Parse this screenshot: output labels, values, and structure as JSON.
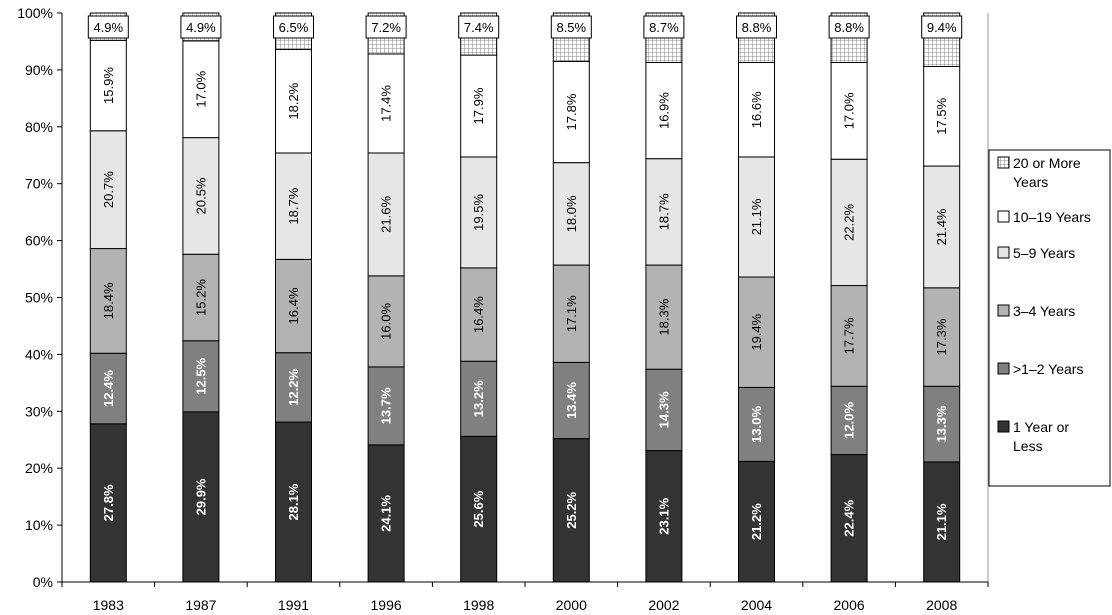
{
  "chart_data": {
    "type": "bar",
    "stacked": true,
    "categories": [
      "1983",
      "1987",
      "1991",
      "1996",
      "1998",
      "2000",
      "2002",
      "2004",
      "2006",
      "2008"
    ],
    "ylim": [
      0,
      100
    ],
    "yticks": [
      "0%",
      "10%",
      "20%",
      "30%",
      "40%",
      "50%",
      "60%",
      "70%",
      "80%",
      "90%",
      "100%"
    ],
    "title": "",
    "xlabel": "",
    "ylabel": "",
    "grid": false,
    "legend_placement": "right",
    "series": [
      {
        "name": "1 Year or Less",
        "color": "#333333",
        "values": [
          27.8,
          29.9,
          28.1,
          24.1,
          25.6,
          25.2,
          23.1,
          21.2,
          22.4,
          21.1
        ],
        "labels": [
          "27.8%",
          "29.9%",
          "28.1%",
          "24.1%",
          "25.6%",
          "25.2%",
          "23.1%",
          "21.2%",
          "22.4%",
          "21.1%"
        ]
      },
      {
        "name": ">1–2 Years",
        "color": "#808080",
        "values": [
          12.4,
          12.5,
          12.2,
          13.7,
          13.2,
          13.4,
          14.3,
          13.0,
          12.0,
          13.3
        ],
        "labels": [
          "12.4%",
          "12.5%",
          "12.2%",
          "13.7%",
          "13.2%",
          "13.4%",
          "14.3%",
          "13.0%",
          "12.0%",
          "13.3%"
        ]
      },
      {
        "name": "3–4 Years",
        "color": "#b3b3b3",
        "values": [
          18.4,
          15.2,
          16.4,
          16.0,
          16.4,
          17.1,
          18.3,
          19.4,
          17.7,
          17.3
        ],
        "labels": [
          "18.4%",
          "15.2%",
          "16.4%",
          "16.0%",
          "16.4%",
          "17.1%",
          "18.3%",
          "19.4%",
          "17.7%",
          "17.3%"
        ]
      },
      {
        "name": "5–9 Years",
        "color": "#e6e6e6",
        "values": [
          20.7,
          20.5,
          18.7,
          21.6,
          19.5,
          18.0,
          18.7,
          21.1,
          22.2,
          21.4
        ],
        "labels": [
          "20.7%",
          "20.5%",
          "18.7%",
          "21.6%",
          "19.5%",
          "18.0%",
          "18.7%",
          "21.1%",
          "22.2%",
          "21.4%"
        ]
      },
      {
        "name": "10–19 Years",
        "color": "#ffffff",
        "values": [
          15.9,
          17.0,
          18.2,
          17.4,
          17.9,
          17.8,
          16.9,
          16.6,
          17.0,
          17.5
        ],
        "labels": [
          "15.9%",
          "17.0%",
          "18.2%",
          "17.4%",
          "17.9%",
          "17.8%",
          "16.9%",
          "16.6%",
          "17.0%",
          "17.5%"
        ]
      },
      {
        "name": "20 or More Years",
        "color": "#ffffff",
        "pattern": "grid",
        "values": [
          4.9,
          4.9,
          6.5,
          7.2,
          7.4,
          8.5,
          8.7,
          8.8,
          8.8,
          9.4
        ],
        "labels": [
          "4.9%",
          "4.9%",
          "6.5%",
          "7.2%",
          "7.4%",
          "8.5%",
          "8.7%",
          "8.8%",
          "8.8%",
          "9.4%"
        ]
      }
    ],
    "legend": [
      {
        "name": "20 or More",
        "name2": "Years",
        "series_index": 5
      },
      {
        "name": "10–19 Years",
        "name2": "",
        "series_index": 4
      },
      {
        "name": "5–9 Years",
        "name2": "",
        "series_index": 3
      },
      {
        "name": "3–4 Years",
        "name2": "",
        "series_index": 2
      },
      {
        "name": ">1–2 Years",
        "name2": "",
        "series_index": 1
      },
      {
        "name": "1 Year or",
        "name2": "Less",
        "series_index": 0
      }
    ]
  }
}
